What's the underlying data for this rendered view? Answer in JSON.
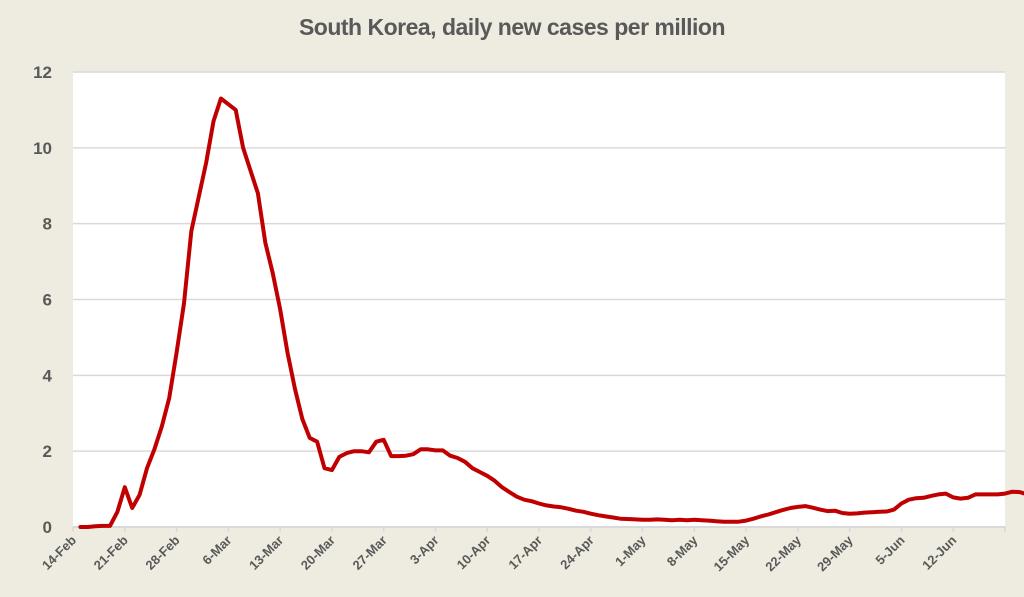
{
  "chart_data": {
    "type": "line",
    "title": "South Korea, daily new cases per million",
    "xlabel": "",
    "ylabel": "",
    "ylim": [
      0,
      12
    ],
    "yticks": [
      0,
      2,
      4,
      6,
      8,
      10,
      12
    ],
    "grid": true,
    "legend": "none",
    "x_start": "14-Feb",
    "x_end_day_offset": 126,
    "xtick_labels": [
      "14-Feb",
      "21-Feb",
      "28-Feb",
      "6-Mar",
      "13-Mar",
      "20-Mar",
      "27-Mar",
      "3-Apr",
      "10-Apr",
      "17-Apr",
      "24-Apr",
      "1-May",
      "8-May",
      "15-May",
      "22-May",
      "29-May",
      "5-Jun",
      "12-Jun"
    ],
    "series": [
      {
        "name": "Daily new cases per million",
        "color": "#c00000",
        "first_day_offset": 1,
        "values": [
          0.0,
          0.0,
          0.02,
          0.03,
          0.03,
          0.4,
          1.05,
          0.5,
          0.85,
          1.55,
          2.05,
          2.65,
          3.4,
          4.6,
          5.9,
          7.8,
          8.7,
          9.6,
          10.7,
          11.3,
          11.15,
          11.0,
          10.0,
          9.4,
          8.8,
          7.5,
          6.7,
          5.75,
          4.6,
          3.65,
          2.85,
          2.35,
          2.25,
          1.55,
          1.5,
          1.85,
          1.95,
          2.0,
          2.0,
          1.97,
          2.25,
          2.3,
          1.87,
          1.87,
          1.88,
          1.92,
          2.05,
          2.05,
          2.02,
          2.02,
          1.88,
          1.82,
          1.72,
          1.55,
          1.45,
          1.35,
          1.22,
          1.05,
          0.92,
          0.8,
          0.72,
          0.68,
          0.62,
          0.57,
          0.54,
          0.52,
          0.48,
          0.43,
          0.4,
          0.35,
          0.31,
          0.28,
          0.25,
          0.22,
          0.21,
          0.2,
          0.19,
          0.19,
          0.2,
          0.19,
          0.18,
          0.19,
          0.18,
          0.19,
          0.18,
          0.17,
          0.15,
          0.14,
          0.14,
          0.14,
          0.17,
          0.22,
          0.28,
          0.33,
          0.39,
          0.45,
          0.5,
          0.53,
          0.55,
          0.51,
          0.46,
          0.42,
          0.43,
          0.37,
          0.35,
          0.36,
          0.38,
          0.39,
          0.4,
          0.41,
          0.46,
          0.62,
          0.72,
          0.76,
          0.77,
          0.82,
          0.86,
          0.88,
          0.78,
          0.75,
          0.77,
          0.86,
          0.86,
          0.86,
          0.86,
          0.88,
          0.93,
          0.92,
          0.86,
          0.84,
          0.84,
          0.83,
          0.87
        ]
      }
    ]
  }
}
